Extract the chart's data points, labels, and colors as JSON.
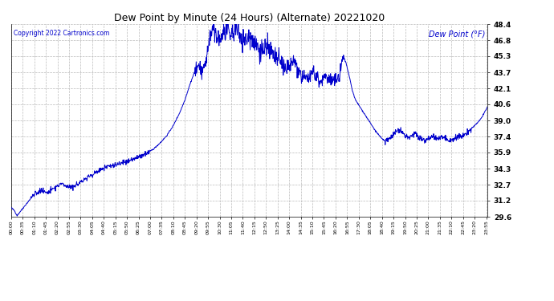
{
  "title": "Dew Point by Minute (24 Hours) (Alternate) 20221020",
  "copyright_text": "Copyright 2022 Cartronics.com",
  "legend_label": "Dew Point (°F)",
  "line_color": "#0000cc",
  "background_color": "#ffffff",
  "grid_color": "#bbbbbb",
  "ylabel_color": "#0000cc",
  "copyright_color": "#0000cc",
  "ylim": [
    29.6,
    48.4
  ],
  "yticks": [
    29.6,
    31.2,
    32.7,
    34.3,
    35.9,
    37.4,
    39.0,
    40.6,
    42.1,
    43.7,
    45.3,
    46.8,
    48.4
  ],
  "xtick_interval": 35,
  "total_minutes": 1440,
  "figwidth": 6.9,
  "figheight": 3.75,
  "dpi": 100
}
